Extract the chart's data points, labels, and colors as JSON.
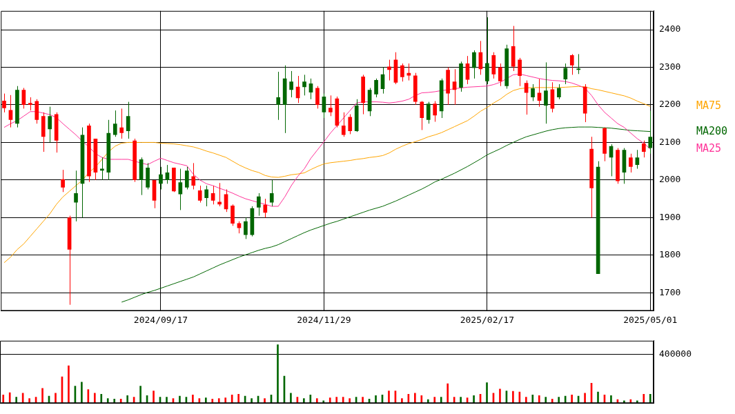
{
  "chart_data": [
    {
      "type": "candlestick",
      "categories": [
        null,
        null,
        null,
        null,
        null,
        null,
        null,
        null,
        null,
        null,
        null,
        null,
        null,
        null,
        null,
        null,
        null,
        null,
        null,
        null,
        null,
        null,
        null,
        null,
        "2024/09/17",
        null,
        null,
        null,
        null,
        null,
        null,
        null,
        null,
        null,
        null,
        null,
        null,
        null,
        null,
        null,
        null,
        null,
        null,
        null,
        null,
        null,
        null,
        null,
        null,
        "2024/11/29",
        null,
        null,
        null,
        null,
        null,
        null,
        null,
        null,
        null,
        null,
        null,
        null,
        null,
        null,
        null,
        null,
        null,
        null,
        null,
        null,
        null,
        null,
        null,
        null,
        "2025/02/17",
        null,
        null,
        null,
        null,
        null,
        null,
        null,
        null,
        null,
        null,
        null,
        null,
        null,
        null,
        null,
        null,
        null,
        null,
        null,
        null,
        null,
        null,
        null,
        null,
        "2025/05/01"
      ],
      "ohlc": [
        [
          2211,
          2230,
          2180,
          2191
        ],
        [
          2186,
          2226,
          2140,
          2160
        ],
        [
          2150,
          2250,
          2140,
          2240
        ],
        [
          2240,
          2245,
          2190,
          2200
        ],
        [
          2205,
          2220,
          2185,
          2200
        ],
        [
          2210,
          2215,
          2150,
          2160
        ],
        [
          2170,
          2180,
          2075,
          2115
        ],
        [
          2135,
          2195,
          2100,
          2170
        ],
        [
          2175,
          2180,
          2073,
          2105
        ],
        [
          2002,
          2027,
          1968,
          1980
        ],
        [
          1900,
          1905,
          1668,
          1815
        ],
        [
          1940,
          2025,
          1890,
          1965
        ],
        [
          1990,
          2140,
          1900,
          2120
        ],
        [
          2145,
          2150,
          1995,
          2010
        ],
        [
          2110,
          2110,
          2000,
          2020
        ],
        [
          2025,
          2060,
          2000,
          2030
        ],
        [
          2020,
          2160,
          2000,
          2125
        ],
        [
          2120,
          2185,
          2115,
          2150
        ],
        [
          2140,
          2190,
          2110,
          2125
        ],
        [
          2130,
          2208,
          2110,
          2170
        ],
        [
          2105,
          2110,
          1995,
          2000
        ],
        [
          2000,
          2060,
          1960,
          2055
        ],
        [
          1980,
          2045,
          1975,
          2033
        ],
        [
          2000,
          2000,
          1925,
          1945
        ],
        [
          1990,
          2035,
          1975,
          2015
        ],
        [
          2000,
          2040,
          1990,
          2020
        ],
        [
          2033,
          2033,
          1968,
          1970
        ],
        [
          1962,
          2030,
          1920,
          1994
        ],
        [
          1980,
          2035,
          1975,
          2025
        ],
        [
          2010,
          2045,
          1975,
          1985
        ],
        [
          1972,
          1985,
          1940,
          1945
        ],
        [
          1952,
          1985,
          1930,
          1975
        ],
        [
          1965,
          1985,
          1935,
          1945
        ],
        [
          1942,
          1992,
          1930,
          1935
        ],
        [
          1962,
          1975,
          1915,
          1922
        ],
        [
          1932,
          1935,
          1878,
          1884
        ],
        [
          1885,
          1890,
          1858,
          1872
        ],
        [
          1854,
          1900,
          1843,
          1890
        ],
        [
          1854,
          1930,
          1850,
          1925
        ],
        [
          1927,
          1965,
          1905,
          1956
        ],
        [
          1934,
          1950,
          1900,
          1913
        ],
        [
          1940,
          2000,
          1930,
          1965
        ],
        [
          2200,
          2288,
          2160,
          2220
        ],
        [
          2200,
          2305,
          2125,
          2270
        ],
        [
          2240,
          2290,
          2220,
          2262
        ],
        [
          2248,
          2277,
          2205,
          2218
        ],
        [
          2247,
          2280,
          2225,
          2262
        ],
        [
          2233,
          2270,
          2215,
          2257
        ],
        [
          2245,
          2250,
          2190,
          2200
        ],
        [
          2180,
          2230,
          2165,
          2222
        ],
        [
          2192,
          2225,
          2170,
          2180
        ],
        [
          2217,
          2222,
          2140,
          2145
        ],
        [
          2145,
          2180,
          2115,
          2120
        ],
        [
          2168,
          2175,
          2122,
          2130
        ],
        [
          2130,
          2215,
          2128,
          2198
        ],
        [
          2275,
          2280,
          2175,
          2205
        ],
        [
          2183,
          2245,
          2170,
          2240
        ],
        [
          2228,
          2270,
          2220,
          2266
        ],
        [
          2242,
          2300,
          2230,
          2281
        ],
        [
          2302,
          2320,
          2265,
          2293
        ],
        [
          2320,
          2340,
          2255,
          2259
        ],
        [
          2305,
          2310,
          2262,
          2274
        ],
        [
          2285,
          2310,
          2265,
          2278
        ],
        [
          2278,
          2285,
          2200,
          2208
        ],
        [
          2208,
          2210,
          2133,
          2165
        ],
        [
          2160,
          2208,
          2150,
          2203
        ],
        [
          2203,
          2210,
          2155,
          2172
        ],
        [
          2183,
          2270,
          2165,
          2265
        ],
        [
          2293,
          2300,
          2200,
          2230
        ],
        [
          2262,
          2295,
          2200,
          2240
        ],
        [
          2246,
          2315,
          2235,
          2310
        ],
        [
          2310,
          2330,
          2255,
          2267
        ],
        [
          2298,
          2345,
          2270,
          2340
        ],
        [
          2340,
          2370,
          2280,
          2295
        ],
        [
          2263,
          2433,
          2255,
          2311
        ],
        [
          2332,
          2340,
          2270,
          2281
        ],
        [
          2300,
          2310,
          2250,
          2263
        ],
        [
          2250,
          2360,
          2243,
          2350
        ],
        [
          2356,
          2410,
          2290,
          2302
        ],
        [
          2320,
          2325,
          2250,
          2277
        ],
        [
          2258,
          2265,
          2174,
          2232
        ],
        [
          2220,
          2255,
          2210,
          2244
        ],
        [
          2232,
          2269,
          2195,
          2211
        ],
        [
          2198,
          2313,
          2150,
          2238
        ],
        [
          2241,
          2260,
          2180,
          2190
        ],
        [
          2220,
          2255,
          2215,
          2245
        ],
        [
          2268,
          2310,
          2255,
          2298
        ],
        [
          2332,
          2335,
          2280,
          2305
        ],
        [
          2293,
          2335,
          2282,
          2297
        ],
        [
          2248,
          2255,
          2154,
          2177
        ],
        [
          2083,
          2115,
          1900,
          1978
        ],
        [
          1750,
          2050,
          1750,
          2035
        ],
        [
          2138,
          2140,
          2050,
          2070
        ],
        [
          2060,
          2095,
          2010,
          2090
        ],
        [
          2080,
          2085,
          1990,
          1997
        ],
        [
          2020,
          2085,
          1990,
          2080
        ],
        [
          2060,
          2070,
          2020,
          2035
        ],
        [
          2040,
          2080,
          2030,
          2060
        ],
        [
          2097,
          2105,
          2060,
          2075
        ],
        [
          2085,
          2184,
          2070,
          2115
        ]
      ],
      "colors": [
        "#ff0000",
        "#ff0000",
        "#006600",
        "#ff0000",
        "#ff0000",
        "#ff0000",
        "#ff0000",
        "#006600",
        "#ff0000",
        "#ff0000",
        "#ff0000",
        "#006600",
        "#006600",
        "#ff0000",
        "#ff0000",
        "#006600",
        "#006600",
        "#006600",
        "#ff0000",
        "#006600",
        "#ff0000",
        "#006600",
        "#006600",
        "#ff0000",
        "#006600",
        "#006600",
        "#ff0000",
        "#006600",
        "#006600",
        "#ff0000",
        "#ff0000",
        "#006600",
        "#ff0000",
        "#ff0000",
        "#ff0000",
        "#ff0000",
        "#ff0000",
        "#006600",
        "#006600",
        "#006600",
        "#ff0000",
        "#006600",
        "#006600",
        "#006600",
        "#006600",
        "#ff0000",
        "#006600",
        "#006600",
        "#ff0000",
        "#006600",
        "#ff0000",
        "#ff0000",
        "#ff0000",
        "#ff0000",
        "#006600",
        "#ff0000",
        "#006600",
        "#006600",
        "#006600",
        "#ff0000",
        "#ff0000",
        "#ff0000",
        "#ff0000",
        "#ff0000",
        "#ff0000",
        "#006600",
        "#ff0000",
        "#006600",
        "#ff0000",
        "#ff0000",
        "#006600",
        "#ff0000",
        "#006600",
        "#ff0000",
        "#006600",
        "#ff0000",
        "#ff0000",
        "#006600",
        "#ff0000",
        "#ff0000",
        "#ff0000",
        "#006600",
        "#ff0000",
        "#006600",
        "#ff0000",
        "#006600",
        "#006600",
        "#ff0000",
        "#006600",
        "#ff0000",
        "#ff0000",
        "#006600",
        "#ff0000",
        "#006600",
        "#ff0000",
        "#006600",
        "#ff0000",
        "#006600",
        "#ff0000",
        "#006600"
      ],
      "series": [
        {
          "type": "line",
          "name": "MA25",
          "color": "#ff3399",
          "values": [
            2140,
            2150,
            2158,
            2170,
            2182,
            2182,
            2178,
            2174,
            2166,
            2150,
            2135,
            2120,
            2103,
            2088,
            2070,
            2060,
            2055,
            2055,
            2055,
            2055,
            2050,
            2045,
            2041,
            2050,
            2058,
            2052,
            2046,
            2042,
            2038,
            2015,
            2000,
            1990,
            1985,
            1978,
            1972,
            1965,
            1957,
            1950,
            1945,
            1940,
            1935,
            1930,
            1930,
            1955,
            1985,
            2010,
            2030,
            2058,
            2080,
            2102,
            2125,
            2145,
            2165,
            2185,
            2205,
            2208,
            2208,
            2208,
            2207,
            2205,
            2207,
            2210,
            2215,
            2225,
            2232,
            2233,
            2235,
            2238,
            2240,
            2243,
            2245,
            2247,
            2248,
            2249,
            2250,
            2254,
            2260,
            2270,
            2280,
            2282,
            2278,
            2274,
            2270,
            2267,
            2265,
            2264,
            2262,
            2258,
            2252,
            2244,
            2225,
            2200,
            2180,
            2165,
            2150,
            2140,
            2125,
            2110,
            2098,
            2082
          ]
        },
        {
          "type": "line",
          "name": "MA75",
          "color": "#ffa500",
          "values": [
            1780,
            1795,
            1815,
            1830,
            1850,
            1870,
            1890,
            1910,
            1935,
            1955,
            1970,
            1985,
            2000,
            2020,
            2035,
            2055,
            2075,
            2090,
            2098,
            2100,
            2100,
            2100,
            2100,
            2100,
            2098,
            2097,
            2096,
            2094,
            2091,
            2088,
            2083,
            2077,
            2072,
            2066,
            2060,
            2050,
            2040,
            2032,
            2025,
            2020,
            2012,
            2008,
            2007,
            2010,
            2014,
            2016,
            2019,
            2028,
            2036,
            2043,
            2046,
            2048,
            2050,
            2052,
            2055,
            2057,
            2060,
            2062,
            2065,
            2072,
            2082,
            2090,
            2097,
            2102,
            2108,
            2115,
            2120,
            2126,
            2134,
            2142,
            2150,
            2158,
            2170,
            2183,
            2193,
            2205,
            2215,
            2228,
            2238,
            2243,
            2245,
            2246,
            2246,
            2246,
            2246,
            2246,
            2247,
            2248,
            2249,
            2248,
            2243,
            2240,
            2236,
            2232,
            2228,
            2224,
            2218,
            2210,
            2203,
            2196
          ]
        },
        {
          "type": "line",
          "name": "MA200",
          "color": "#006600",
          "values": [
            null,
            null,
            null,
            null,
            null,
            null,
            null,
            null,
            null,
            null,
            null,
            null,
            null,
            null,
            null,
            null,
            null,
            null,
            1675,
            1681,
            1688,
            1695,
            1701,
            1706,
            1712,
            1718,
            1724,
            1730,
            1736,
            1742,
            1750,
            1758,
            1766,
            1774,
            1781,
            1788,
            1795,
            1801,
            1807,
            1813,
            1818,
            1822,
            1828,
            1836,
            1844,
            1852,
            1860,
            1867,
            1873,
            1879,
            1885,
            1890,
            1896,
            1902,
            1908,
            1914,
            1920,
            1925,
            1930,
            1937,
            1944,
            1952,
            1960,
            1968,
            1976,
            1985,
            1995,
            2002,
            2010,
            2018,
            2027,
            2036,
            2046,
            2056,
            2067,
            2075,
            2083,
            2092,
            2100,
            2108,
            2115,
            2120,
            2125,
            2130,
            2134,
            2137,
            2139,
            2140,
            2141,
            2141,
            2141,
            2140,
            2139,
            2138,
            2136,
            2134,
            2132,
            2131,
            2130,
            2129
          ]
        }
      ],
      "ylim": [
        1652,
        2450
      ],
      "yticks": [
        1700,
        1800,
        1900,
        2000,
        2100,
        2200,
        2300,
        2400
      ],
      "grid": true
    },
    {
      "type": "bar",
      "tick_labels": "y",
      "grid": "y",
      "ylim": [
        0,
        510000
      ],
      "yticks": [
        {
          "value": 0,
          "label": null
        },
        400000
      ],
      "categories": [
        null,
        null,
        null,
        null,
        null,
        null,
        null,
        null,
        null,
        null,
        null,
        null,
        null,
        null,
        null,
        null,
        null,
        null,
        null,
        null,
        null,
        null,
        null,
        null,
        "2024/09/17",
        null,
        null,
        null,
        null,
        null,
        null,
        null,
        null,
        null,
        null,
        null,
        null,
        null,
        null,
        null,
        null,
        null,
        null,
        null,
        null,
        null,
        null,
        null,
        null,
        "2024/11/29",
        null,
        null,
        null,
        null,
        null,
        null,
        null,
        null,
        null,
        null,
        null,
        null,
        null,
        null,
        null,
        null,
        null,
        null,
        null,
        null,
        null,
        null,
        null,
        null,
        "2025/02/17",
        null,
        null,
        null,
        null,
        null,
        null,
        null,
        null,
        null,
        null,
        null,
        null,
        null,
        null,
        null,
        null,
        null,
        null,
        null,
        null,
        null,
        null,
        null,
        null,
        "2025/05/01"
      ],
      "values": [
        67000,
        86000,
        48000,
        81000,
        38000,
        48000,
        120000,
        57000,
        81000,
        215000,
        306000,
        139000,
        172000,
        110000,
        81000,
        72000,
        38000,
        33000,
        33000,
        62000,
        48000,
        139000,
        62000,
        100000,
        48000,
        48000,
        38000,
        57000,
        48000,
        67000,
        38000,
        43000,
        33000,
        38000,
        43000,
        67000,
        72000,
        57000,
        38000,
        57000,
        38000,
        67000,
        478000,
        220000,
        81000,
        48000,
        38000,
        67000,
        38000,
        19000,
        43000,
        48000,
        48000,
        38000,
        48000,
        48000,
        33000,
        62000,
        67000,
        100000,
        100000,
        38000,
        72000,
        81000,
        62000,
        29000,
        48000,
        48000,
        158000,
        48000,
        48000,
        43000,
        62000,
        72000,
        167000,
        81000,
        115000,
        100000,
        96000,
        91000,
        48000,
        67000,
        62000,
        48000,
        33000,
        48000,
        57000,
        67000,
        57000,
        81000,
        163000,
        91000,
        67000,
        62000,
        29000,
        19000,
        29000,
        19000,
        72000,
        72000
      ],
      "colors": [
        "#ff0000",
        "#ff0000",
        "#006600",
        "#ff0000",
        "#ff0000",
        "#ff0000",
        "#ff0000",
        "#006600",
        "#ff0000",
        "#ff0000",
        "#ff0000",
        "#006600",
        "#006600",
        "#ff0000",
        "#ff0000",
        "#006600",
        "#006600",
        "#006600",
        "#ff0000",
        "#006600",
        "#ff0000",
        "#006600",
        "#006600",
        "#ff0000",
        "#006600",
        "#006600",
        "#ff0000",
        "#006600",
        "#006600",
        "#ff0000",
        "#ff0000",
        "#006600",
        "#ff0000",
        "#ff0000",
        "#ff0000",
        "#ff0000",
        "#ff0000",
        "#006600",
        "#006600",
        "#006600",
        "#ff0000",
        "#006600",
        "#006600",
        "#006600",
        "#006600",
        "#ff0000",
        "#006600",
        "#006600",
        "#ff0000",
        "#006600",
        "#ff0000",
        "#ff0000",
        "#ff0000",
        "#ff0000",
        "#006600",
        "#ff0000",
        "#006600",
        "#006600",
        "#006600",
        "#ff0000",
        "#ff0000",
        "#ff0000",
        "#ff0000",
        "#ff0000",
        "#ff0000",
        "#006600",
        "#ff0000",
        "#006600",
        "#ff0000",
        "#ff0000",
        "#006600",
        "#ff0000",
        "#006600",
        "#ff0000",
        "#006600",
        "#ff0000",
        "#ff0000",
        "#006600",
        "#ff0000",
        "#ff0000",
        "#ff0000",
        "#006600",
        "#ff0000",
        "#006600",
        "#ff0000",
        "#006600",
        "#006600",
        "#ff0000",
        "#006600",
        "#ff0000",
        "#ff0000",
        "#006600",
        "#ff0000",
        "#006600",
        "#ff0000",
        "#006600",
        "#ff0000",
        "#006600",
        "#ff0000",
        "#006600"
      ],
      "legend": false
    }
  ]
}
